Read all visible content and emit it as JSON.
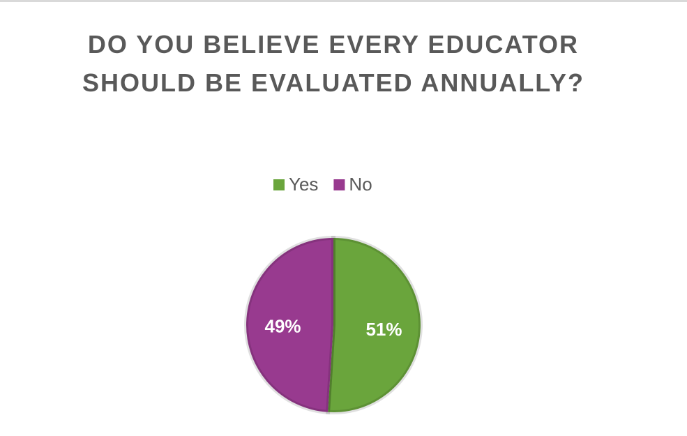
{
  "chart_data": {
    "type": "pie",
    "title": "DO YOU BELIEVE EVERY EDUCATOR SHOULD BE EVALUATED ANNUALLY?",
    "categories": [
      "Yes",
      "No"
    ],
    "values": [
      51,
      49
    ],
    "value_labels": [
      "51%",
      "49%"
    ],
    "colors": [
      "#6aa53c",
      "#983a8f"
    ],
    "legend": "top"
  }
}
